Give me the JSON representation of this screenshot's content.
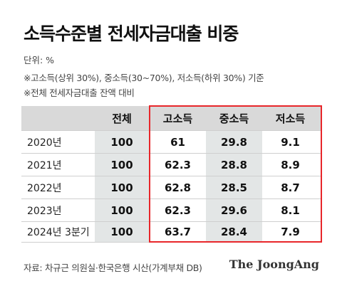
{
  "title": "소득수준별 전세자금대출 비중",
  "unit": "단위: %",
  "notes": [
    "※고소득(상위 30%), 중소득(30~70%), 저소득(하위 30%) 기준",
    "※전체 전세자금대출 잔액 대비"
  ],
  "table": {
    "headers": [
      "",
      "전체",
      "고소득",
      "중소득",
      "저소득"
    ],
    "rows": [
      {
        "year": "2020년",
        "total": "100",
        "high": "61",
        "mid": "29.8",
        "low": "9.1"
      },
      {
        "year": "2021년",
        "total": "100",
        "high": "62.3",
        "mid": "28.8",
        "low": "8.9"
      },
      {
        "year": "2022년",
        "total": "100",
        "high": "62.8",
        "mid": "28.5",
        "low": "8.7"
      },
      {
        "year": "2023년",
        "total": "100",
        "high": "62.3",
        "mid": "29.6",
        "low": "8.1"
      },
      {
        "year": "2024년 3분기",
        "total": "100",
        "high": "63.7",
        "mid": "28.4",
        "low": "7.9"
      }
    ]
  },
  "highlight_color": "#e8262a",
  "source": "자료: 차규근 의원실·한국은행 시산(가계부채 DB)",
  "logo": "The JoongAng"
}
